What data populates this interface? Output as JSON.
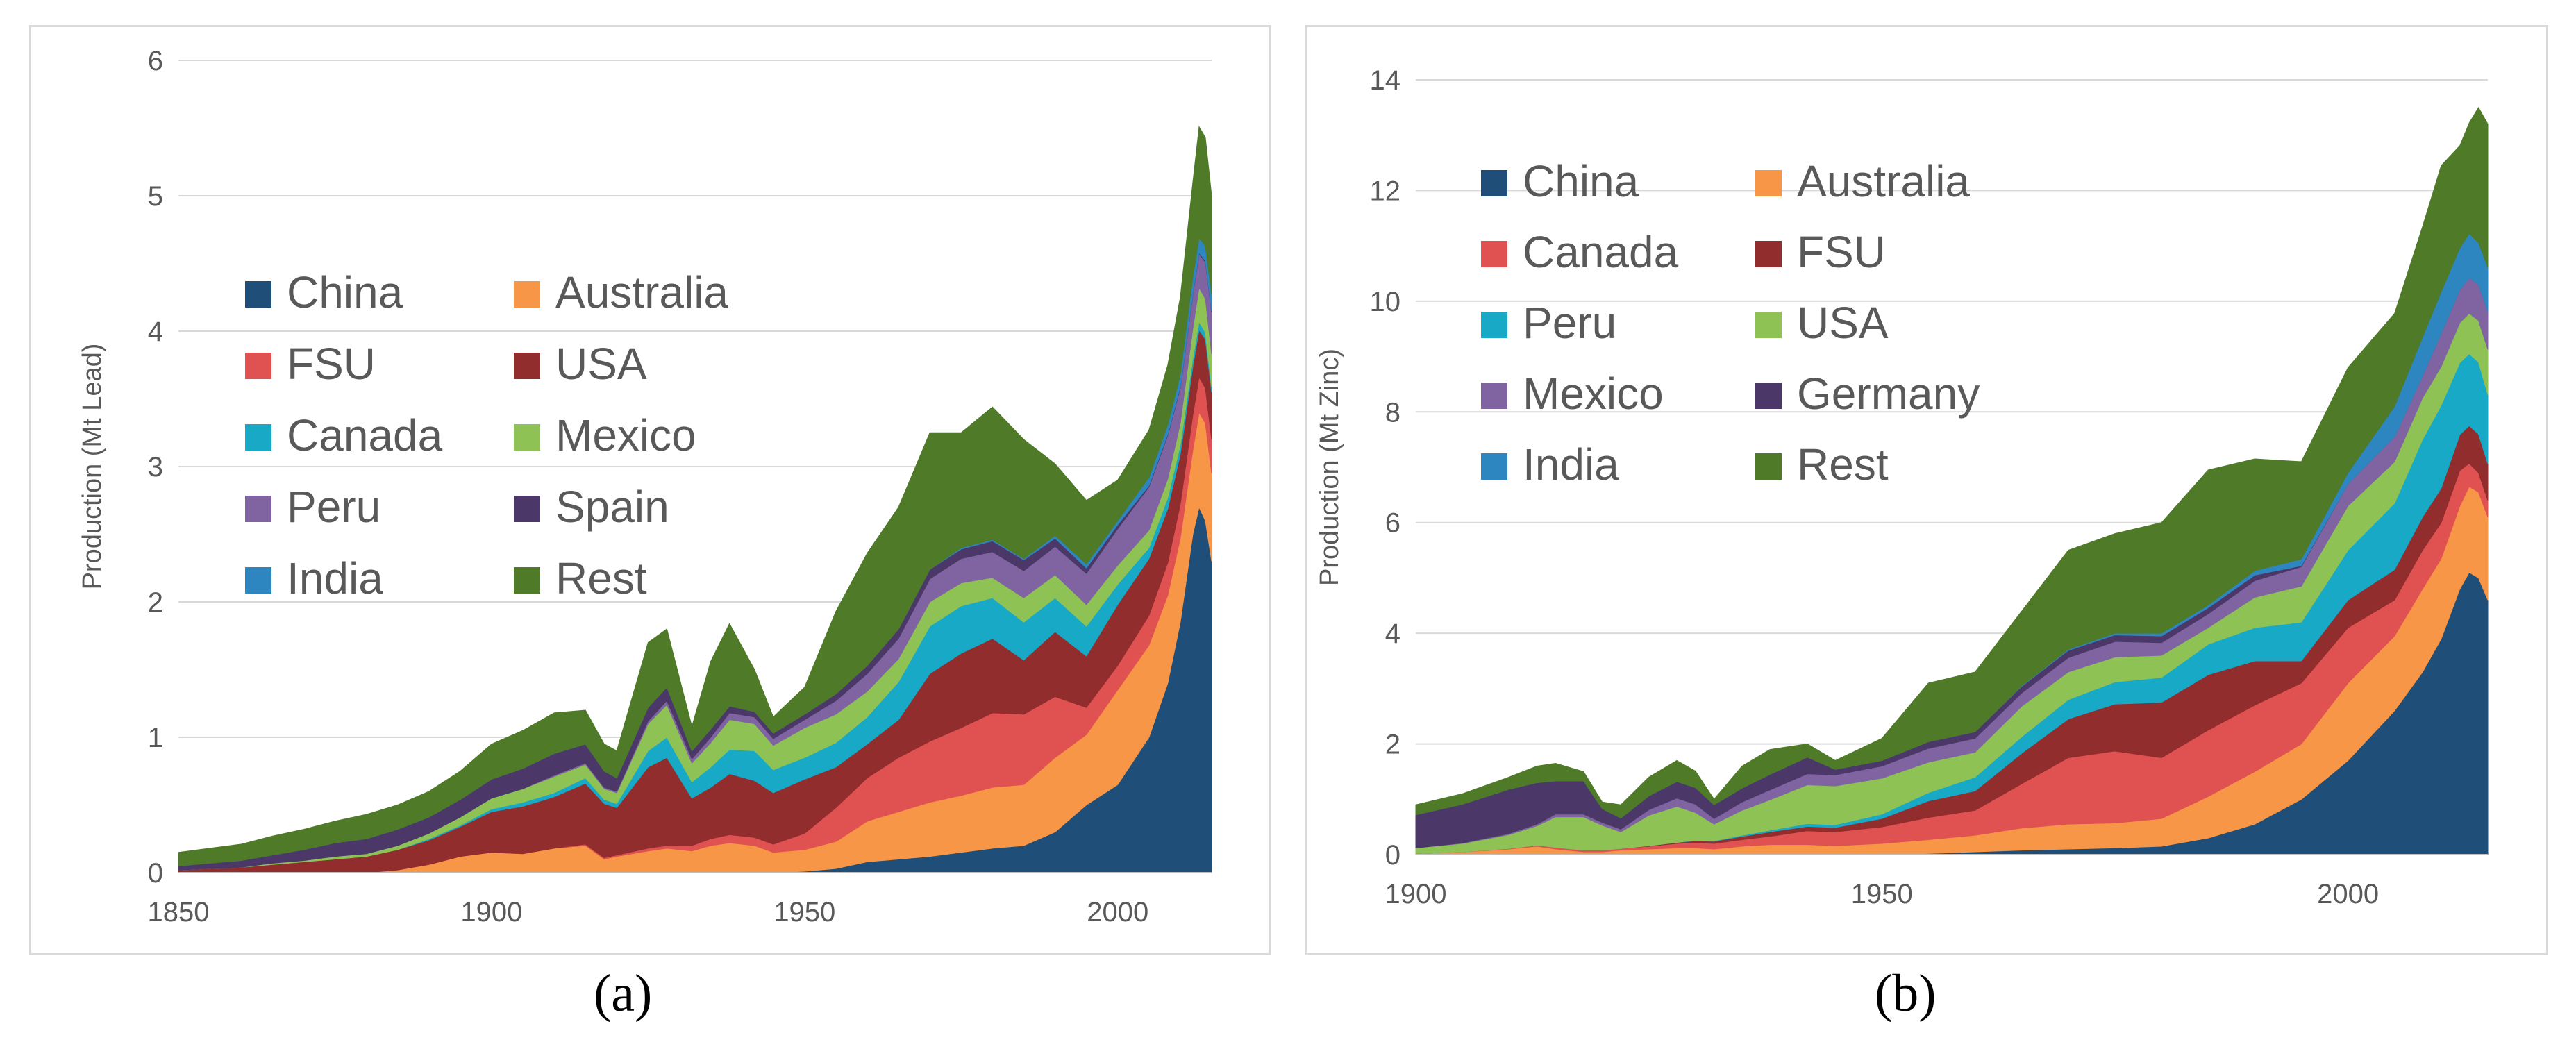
{
  "chart_data": [
    {
      "type": "area",
      "stacked": true,
      "panel_label": "(a)",
      "title": "",
      "xlabel": "",
      "ylabel": "Production (Mt Lead)",
      "xlim": [
        1850,
        2015
      ],
      "ylim": [
        0,
        6
      ],
      "xticks": [
        1850,
        1900,
        1950,
        2000
      ],
      "yticks": [
        0,
        1,
        2,
        3,
        4,
        5,
        6
      ],
      "grid": true,
      "legend_placement": "center-left",
      "x": [
        1850,
        1855,
        1860,
        1865,
        1870,
        1875,
        1880,
        1885,
        1890,
        1895,
        1900,
        1905,
        1910,
        1915,
        1918,
        1920,
        1925,
        1928,
        1932,
        1935,
        1938,
        1942,
        1945,
        1950,
        1955,
        1960,
        1965,
        1970,
        1975,
        1980,
        1985,
        1990,
        1995,
        2000,
        2005,
        2008,
        2010,
        2012,
        2013,
        2014,
        2015
      ],
      "series": [
        {
          "name": "China",
          "color": "#1f4e79",
          "values": [
            0,
            0,
            0,
            0,
            0,
            0,
            0,
            0,
            0,
            0,
            0,
            0,
            0,
            0,
            0,
            0,
            0,
            0,
            0,
            0,
            0,
            0,
            0,
            0.01,
            0.03,
            0.08,
            0.1,
            0.12,
            0.15,
            0.18,
            0.2,
            0.3,
            0.5,
            0.65,
            1.0,
            1.4,
            1.85,
            2.5,
            2.7,
            2.6,
            2.3
          ]
        },
        {
          "name": "Australia",
          "color": "#f79646",
          "values": [
            0,
            0,
            0,
            0,
            0,
            0,
            0,
            0.02,
            0.06,
            0.12,
            0.15,
            0.14,
            0.18,
            0.2,
            0.1,
            0.12,
            0.16,
            0.18,
            0.16,
            0.2,
            0.22,
            0.2,
            0.15,
            0.16,
            0.2,
            0.3,
            0.35,
            0.4,
            0.42,
            0.45,
            0.45,
            0.55,
            0.52,
            0.7,
            0.68,
            0.65,
            0.62,
            0.62,
            0.7,
            0.72,
            0.65
          ]
        },
        {
          "name": "FSU",
          "color": "#e05252",
          "values": [
            0,
            0,
            0,
            0,
            0,
            0,
            0,
            0,
            0,
            0,
            0,
            0,
            0,
            0.01,
            0.01,
            0.01,
            0.02,
            0.02,
            0.04,
            0.05,
            0.06,
            0.06,
            0.06,
            0.12,
            0.25,
            0.32,
            0.4,
            0.45,
            0.5,
            0.55,
            0.52,
            0.45,
            0.2,
            0.18,
            0.22,
            0.24,
            0.25,
            0.26,
            0.26,
            0.26,
            0.25
          ]
        },
        {
          "name": "USA",
          "color": "#922d2d",
          "values": [
            0.02,
            0.03,
            0.04,
            0.06,
            0.08,
            0.1,
            0.12,
            0.15,
            0.18,
            0.22,
            0.3,
            0.35,
            0.38,
            0.45,
            0.4,
            0.35,
            0.6,
            0.65,
            0.35,
            0.38,
            0.45,
            0.42,
            0.38,
            0.4,
            0.3,
            0.25,
            0.28,
            0.5,
            0.55,
            0.55,
            0.4,
            0.48,
            0.38,
            0.45,
            0.42,
            0.4,
            0.37,
            0.36,
            0.35,
            0.36,
            0.35
          ]
        },
        {
          "name": "Canada",
          "color": "#17a9c6",
          "values": [
            0,
            0,
            0,
            0,
            0,
            0,
            0,
            0,
            0.01,
            0.01,
            0.02,
            0.03,
            0.03,
            0.04,
            0.03,
            0.03,
            0.12,
            0.15,
            0.12,
            0.15,
            0.18,
            0.22,
            0.17,
            0.16,
            0.18,
            0.2,
            0.28,
            0.35,
            0.35,
            0.3,
            0.28,
            0.25,
            0.22,
            0.15,
            0.08,
            0.08,
            0.07,
            0.06,
            0.06,
            0.05,
            0.04
          ]
        },
        {
          "name": "Mexico",
          "color": "#8fc255",
          "values": [
            0,
            0,
            0,
            0.01,
            0.01,
            0.02,
            0.02,
            0.03,
            0.04,
            0.06,
            0.08,
            0.1,
            0.12,
            0.1,
            0.08,
            0.08,
            0.2,
            0.24,
            0.14,
            0.18,
            0.22,
            0.2,
            0.18,
            0.22,
            0.21,
            0.19,
            0.17,
            0.18,
            0.17,
            0.15,
            0.18,
            0.17,
            0.16,
            0.14,
            0.13,
            0.14,
            0.16,
            0.22,
            0.25,
            0.25,
            0.24
          ]
        },
        {
          "name": "Peru",
          "color": "#8064a2",
          "values": [
            0,
            0,
            0,
            0,
            0,
            0,
            0,
            0,
            0,
            0,
            0,
            0,
            0.01,
            0.01,
            0.01,
            0.01,
            0.02,
            0.03,
            0.03,
            0.04,
            0.05,
            0.05,
            0.05,
            0.06,
            0.1,
            0.13,
            0.15,
            0.17,
            0.18,
            0.19,
            0.2,
            0.21,
            0.23,
            0.27,
            0.32,
            0.32,
            0.26,
            0.25,
            0.25,
            0.27,
            0.31
          ]
        },
        {
          "name": "Spain",
          "color": "#4b3869",
          "values": [
            0.03,
            0.04,
            0.05,
            0.06,
            0.08,
            0.1,
            0.11,
            0.12,
            0.12,
            0.13,
            0.14,
            0.15,
            0.16,
            0.14,
            0.12,
            0.1,
            0.1,
            0.1,
            0.06,
            0.06,
            0.05,
            0.04,
            0.04,
            0.04,
            0.05,
            0.06,
            0.07,
            0.07,
            0.07,
            0.08,
            0.08,
            0.06,
            0.04,
            0.03,
            0.01,
            0.01,
            0.01,
            0.01,
            0.01,
            0.01,
            0.01
          ]
        },
        {
          "name": "India",
          "color": "#2e86c1",
          "values": [
            0,
            0,
            0,
            0,
            0,
            0,
            0,
            0,
            0,
            0,
            0,
            0,
            0,
            0,
            0,
            0,
            0,
            0,
            0,
            0,
            0,
            0,
            0,
            0,
            0,
            0,
            0,
            0,
            0.01,
            0.01,
            0.01,
            0.02,
            0.03,
            0.03,
            0.06,
            0.07,
            0.09,
            0.12,
            0.11,
            0.11,
            0.12
          ]
        },
        {
          "name": "Rest",
          "color": "#4f7a28",
          "values": [
            0.1,
            0.11,
            0.12,
            0.14,
            0.15,
            0.16,
            0.18,
            0.18,
            0.19,
            0.21,
            0.26,
            0.28,
            0.3,
            0.25,
            0.2,
            0.2,
            0.48,
            0.43,
            0.18,
            0.5,
            0.61,
            0.31,
            0.12,
            0.2,
            0.61,
            0.83,
            0.9,
            1.01,
            0.85,
            0.98,
            0.88,
            0.53,
            0.47,
            0.3,
            0.35,
            0.44,
            0.57,
            0.7,
            0.82,
            0.8,
            0.73
          ]
        }
      ]
    },
    {
      "type": "area",
      "stacked": true,
      "panel_label": "(b)",
      "title": "",
      "xlabel": "",
      "ylabel": "Production (Mt Zinc)",
      "xlim": [
        1900,
        2015
      ],
      "ylim": [
        0,
        14
      ],
      "xticks": [
        1900,
        1950,
        2000
      ],
      "yticks": [
        0,
        2,
        4,
        6,
        8,
        10,
        12,
        14
      ],
      "grid": true,
      "legend_placement": "top-left",
      "x": [
        1900,
        1905,
        1910,
        1913,
        1915,
        1918,
        1920,
        1922,
        1925,
        1928,
        1930,
        1932,
        1935,
        1938,
        1942,
        1945,
        1950,
        1955,
        1960,
        1965,
        1970,
        1975,
        1980,
        1985,
        1990,
        1995,
        2000,
        2005,
        2008,
        2010,
        2012,
        2013,
        2014,
        2015
      ],
      "series": [
        {
          "name": "China",
          "color": "#1f4e79",
          "values": [
            0,
            0,
            0,
            0,
            0,
            0,
            0,
            0,
            0,
            0,
            0,
            0,
            0,
            0,
            0,
            0,
            0,
            0.02,
            0.05,
            0.08,
            0.1,
            0.12,
            0.15,
            0.3,
            0.55,
            1.0,
            1.7,
            2.6,
            3.3,
            3.9,
            4.8,
            5.1,
            5.0,
            4.6
          ]
        },
        {
          "name": "Australia",
          "color": "#f79646",
          "values": [
            0.02,
            0.05,
            0.1,
            0.15,
            0.1,
            0.05,
            0.05,
            0.08,
            0.1,
            0.12,
            0.12,
            0.1,
            0.15,
            0.18,
            0.18,
            0.16,
            0.2,
            0.25,
            0.3,
            0.4,
            0.45,
            0.45,
            0.5,
            0.75,
            0.95,
            1.0,
            1.4,
            1.35,
            1.5,
            1.45,
            1.5,
            1.55,
            1.55,
            1.5
          ]
        },
        {
          "name": "Canada",
          "color": "#e05252",
          "values": [
            0,
            0,
            0.01,
            0.02,
            0.03,
            0.03,
            0.03,
            0.03,
            0.05,
            0.08,
            0.1,
            0.1,
            0.12,
            0.15,
            0.25,
            0.25,
            0.3,
            0.4,
            0.45,
            0.8,
            1.2,
            1.3,
            1.1,
            1.2,
            1.2,
            1.1,
            1.0,
            0.65,
            0.7,
            0.65,
            0.64,
            0.42,
            0.35,
            0.3
          ]
        },
        {
          "name": "FSU",
          "color": "#922d2d",
          "values": [
            0,
            0,
            0,
            0,
            0,
            0,
            0,
            0,
            0.01,
            0.02,
            0.03,
            0.04,
            0.06,
            0.08,
            0.08,
            0.08,
            0.15,
            0.3,
            0.35,
            0.55,
            0.7,
            0.85,
            1.0,
            1.0,
            0.8,
            0.4,
            0.5,
            0.55,
            0.6,
            0.62,
            0.65,
            0.68,
            0.7,
            0.66
          ]
        },
        {
          "name": "Peru",
          "color": "#17a9c6",
          "values": [
            0,
            0,
            0,
            0,
            0,
            0,
            0,
            0,
            0,
            0,
            0.01,
            0.01,
            0.02,
            0.03,
            0.05,
            0.05,
            0.08,
            0.15,
            0.25,
            0.3,
            0.35,
            0.4,
            0.45,
            0.55,
            0.6,
            0.7,
            0.9,
            1.2,
            1.4,
            1.5,
            1.3,
            1.3,
            1.3,
            1.25
          ]
        },
        {
          "name": "USA",
          "color": "#8fc255",
          "values": [
            0.1,
            0.15,
            0.25,
            0.35,
            0.55,
            0.6,
            0.45,
            0.3,
            0.55,
            0.65,
            0.5,
            0.3,
            0.45,
            0.55,
            0.7,
            0.7,
            0.65,
            0.55,
            0.45,
            0.55,
            0.5,
            0.45,
            0.4,
            0.3,
            0.55,
            0.65,
            0.8,
            0.75,
            0.75,
            0.7,
            0.72,
            0.73,
            0.75,
            0.82
          ]
        },
        {
          "name": "Mexico",
          "color": "#8064a2",
          "values": [
            0,
            0.01,
            0.02,
            0.03,
            0.05,
            0.05,
            0.05,
            0.05,
            0.1,
            0.15,
            0.15,
            0.1,
            0.15,
            0.18,
            0.2,
            0.2,
            0.22,
            0.25,
            0.25,
            0.24,
            0.26,
            0.28,
            0.23,
            0.25,
            0.3,
            0.35,
            0.4,
            0.45,
            0.4,
            0.6,
            0.6,
            0.64,
            0.66,
            0.68
          ]
        },
        {
          "name": "Germany",
          "color": "#4b3869",
          "values": [
            0.6,
            0.7,
            0.8,
            0.75,
            0.6,
            0.6,
            0.25,
            0.2,
            0.25,
            0.3,
            0.3,
            0.25,
            0.25,
            0.28,
            0.3,
            0.1,
            0.1,
            0.12,
            0.12,
            0.12,
            0.13,
            0.12,
            0.12,
            0.11,
            0.1,
            0.02,
            0,
            0,
            0,
            0,
            0,
            0,
            0,
            0
          ]
        },
        {
          "name": "India",
          "color": "#2e86c1",
          "values": [
            0,
            0,
            0,
            0,
            0,
            0,
            0,
            0,
            0,
            0,
            0,
            0,
            0,
            0,
            0,
            0,
            0,
            0,
            0,
            0.01,
            0.02,
            0.03,
            0.05,
            0.05,
            0.08,
            0.12,
            0.2,
            0.55,
            0.7,
            0.75,
            0.75,
            0.8,
            0.75,
            0.8
          ]
        },
        {
          "name": "Rest",
          "color": "#4f7a28",
          "values": [
            0.18,
            0.19,
            0.22,
            0.3,
            0.32,
            0.17,
            0.12,
            0.24,
            0.34,
            0.38,
            0.3,
            0.1,
            0.4,
            0.45,
            0.24,
            0.16,
            0.4,
            1.06,
            1.08,
            1.35,
            1.79,
            1.8,
            2.0,
            2.44,
            2.02,
            1.76,
            1.9,
            1.68,
            2.0,
            2.28,
            1.85,
            2.0,
            2.44,
            2.59
          ]
        }
      ]
    }
  ]
}
